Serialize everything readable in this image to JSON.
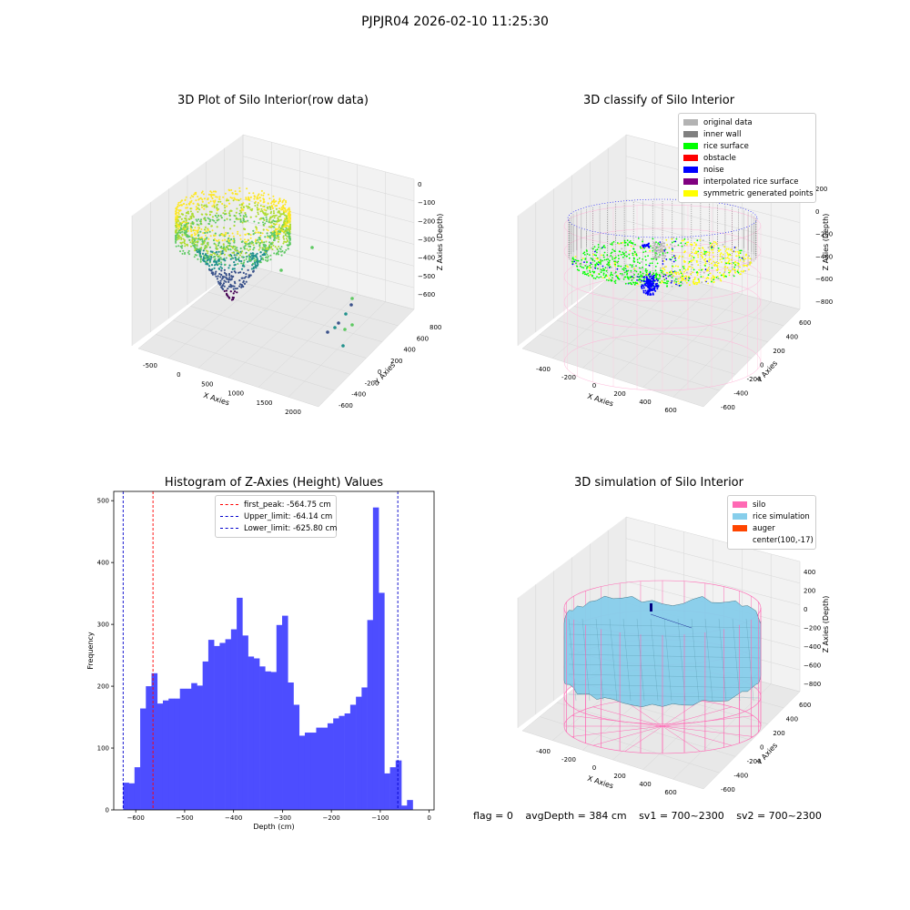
{
  "suptitle": "PJPJR04 2026-02-10 11:25:30",
  "footer": {
    "flag": "flag = 0",
    "avg_depth": "avgDepth = 384 cm",
    "sv1": "sv1 = 700~2300",
    "sv2": "sv2 = 700~2300"
  },
  "chart_data": [
    {
      "type": "scatter",
      "title": "3D Plot of Silo Interior(row data)",
      "xlabel": "X Axies",
      "ylabel": "Y Axies",
      "zlabel": "Z Axies (Depth)",
      "x_ticks": [
        "-500",
        "0",
        "500",
        "1000",
        "1500",
        "2000"
      ],
      "y_ticks": [
        "-600",
        "-400",
        "-200",
        "0",
        "200",
        "400",
        "600",
        "800"
      ],
      "z_ticks": [
        "0",
        "−100",
        "−200",
        "−300",
        "−400",
        "−500",
        "−600"
      ],
      "colormap": "viridis"
    },
    {
      "type": "scatter",
      "title": "3D classify of Silo Interior",
      "xlabel": "X Axies",
      "ylabel": "Y Axies",
      "zlabel": "Z Axies (Depth)",
      "x_ticks": [
        "-400",
        "-200",
        "0",
        "200",
        "400",
        "600"
      ],
      "y_ticks": [
        "-600",
        "-400",
        "-200",
        "0",
        "200",
        "400",
        "600"
      ],
      "z_ticks": [
        "200",
        "0",
        "−200",
        "−400",
        "−600",
        "−800"
      ],
      "legend_position": "top-right",
      "legend": [
        {
          "label": "original data",
          "color": "#b3b3b3"
        },
        {
          "label": "inner wall",
          "color": "#808080"
        },
        {
          "label": "rice surface",
          "color": "#00ff00"
        },
        {
          "label": "obstacle",
          "color": "#ff0000"
        },
        {
          "label": "noise",
          "color": "#0000ff"
        },
        {
          "label": "interpolated rice surface",
          "color": "#800080"
        },
        {
          "label": "symmetric generated points",
          "color": "#ffff00"
        }
      ]
    },
    {
      "type": "bar",
      "title": "Histogram of Z-Axies (Height) Values",
      "xlabel": "Depth (cm)",
      "ylabel": "Frequency",
      "xlim": [
        -645,
        10
      ],
      "ylim": [
        0,
        515
      ],
      "x_ticks": [
        -600,
        -500,
        -400,
        -300,
        -200,
        -100,
        0
      ],
      "y_ticks": [
        0,
        100,
        200,
        300,
        400,
        500
      ],
      "bar_color": "#4d4dff",
      "bin_width": 11.61,
      "bin_start": -625.8,
      "values": [
        44,
        43,
        69,
        164,
        200,
        221,
        172,
        177,
        180,
        180,
        196,
        196,
        205,
        201,
        240,
        275,
        265,
        270,
        276,
        292,
        343,
        282,
        248,
        245,
        232,
        224,
        223,
        299,
        314,
        206,
        170,
        120,
        125,
        125,
        133,
        133,
        140,
        148,
        152,
        156,
        170,
        183,
        198,
        307,
        489,
        351,
        59,
        69,
        80,
        7,
        16
      ],
      "legend_position": "top-center",
      "lines": [
        {
          "label": "first_peak: -564.75 cm",
          "value": -564.75,
          "color": "#ff0000"
        },
        {
          "label": "Upper_limit: -64.14 cm",
          "value": -64.14,
          "color": "#0000cc"
        },
        {
          "label": "Lower_limit: -625.80 cm",
          "value": -625.8,
          "color": "#0000cc"
        }
      ]
    },
    {
      "type": "surface",
      "title": "3D simulation of Silo Interior",
      "xlabel": "X Axies",
      "ylabel": "Y Axies",
      "zlabel": "Z Axies (Depth)",
      "x_ticks": [
        "-400",
        "-200",
        "0",
        "200",
        "400",
        "600"
      ],
      "y_ticks": [
        "-600",
        "-400",
        "-200",
        "0",
        "200",
        "400",
        "600"
      ],
      "z_ticks": [
        "400",
        "200",
        "0",
        "−200",
        "−400",
        "−600",
        "−800"
      ],
      "legend_position": "top-right",
      "legend": [
        {
          "label": "silo",
          "color": "#ff69b4"
        },
        {
          "label": "rice simulation",
          "color": "#87ceeb"
        },
        {
          "label": "auger",
          "color": "#ff4500"
        },
        {
          "label": "center(100,-17)",
          "color": ""
        }
      ]
    }
  ]
}
